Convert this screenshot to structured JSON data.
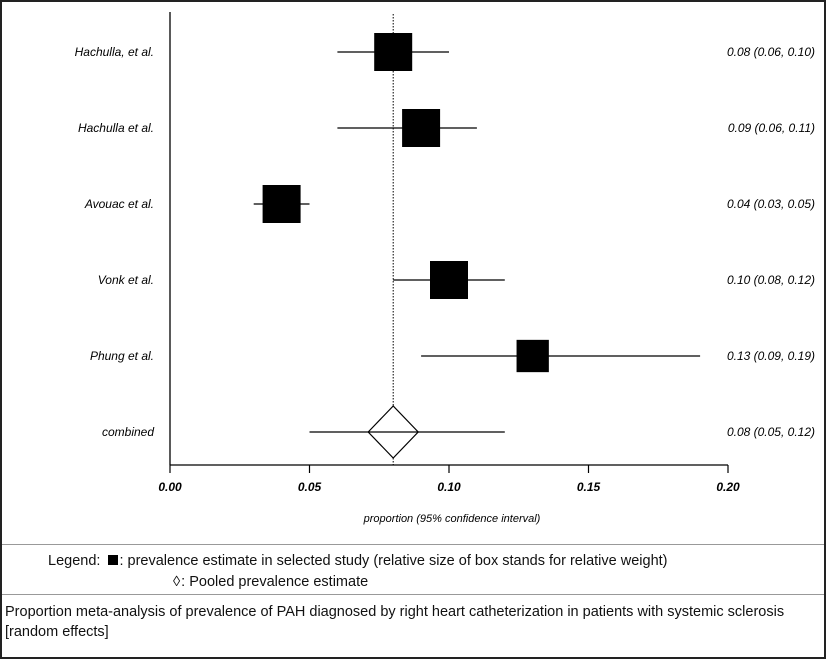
{
  "chart_data": {
    "type": "forest",
    "title": "",
    "xlabel": "proportion (95% confidence interval)",
    "ylabel": "",
    "xlim": [
      0.0,
      0.2
    ],
    "x_ticks": [
      "0.00",
      "0.05",
      "0.10",
      "0.15",
      "0.20"
    ],
    "reference_line": 0.08,
    "studies": [
      {
        "name": "Hachulla, et al.",
        "estimate": 0.08,
        "lower": 0.06,
        "upper": 0.1,
        "ci_text": "0.08 (0.06, 0.10)",
        "weight": 1.0
      },
      {
        "name": "Hachulla et al.",
        "estimate": 0.09,
        "lower": 0.06,
        "upper": 0.11,
        "ci_text": "0.09 (0.06, 0.11)",
        "weight": 1.0
      },
      {
        "name": "Avouac et al.",
        "estimate": 0.04,
        "lower": 0.03,
        "upper": 0.05,
        "ci_text": "0.04 (0.03, 0.05)",
        "weight": 1.0
      },
      {
        "name": "Vonk et al.",
        "estimate": 0.1,
        "lower": 0.08,
        "upper": 0.12,
        "ci_text": "0.10 (0.08, 0.12)",
        "weight": 1.0
      },
      {
        "name": "Phung et al.",
        "estimate": 0.13,
        "lower": 0.09,
        "upper": 0.19,
        "ci_text": "0.13 (0.09, 0.19)",
        "weight": 0.85
      }
    ],
    "combined": {
      "name": "combined",
      "estimate": 0.08,
      "lower": 0.05,
      "upper": 0.12,
      "ci_text": "0.08 (0.05, 0.12)"
    }
  },
  "legend": {
    "line1_prefix": "Legend: ",
    "line1_text": ": prevalence estimate in selected study (relative size of box stands for relative weight)",
    "line2_text": ": Pooled prevalence estimate"
  },
  "caption": "Proportion meta-analysis of prevalence of PAH diagnosed by right heart catheterization in patients with systemic sclerosis [random effects]"
}
